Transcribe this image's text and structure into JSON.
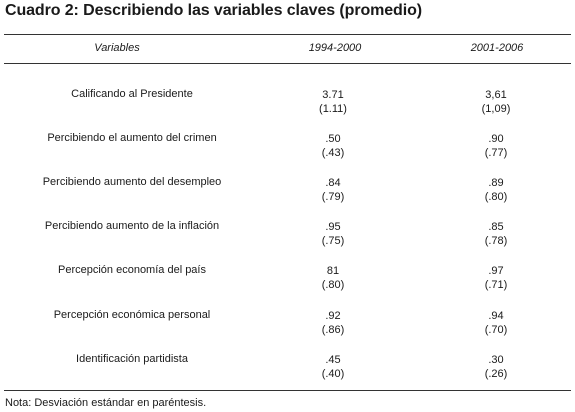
{
  "title": "Cuadro 2: Describiendo las variables claves (promedio)",
  "columns": [
    "Variables",
    "1994-2000",
    "2001-2006"
  ],
  "rows": [
    {
      "label": "Calificando al Presidente",
      "v1": "3.71",
      "sd1": "(1.11)",
      "v2": "3,61",
      "sd2": "(1,09)"
    },
    {
      "label": "Percibiendo el aumento del crimen",
      "v1": ".50",
      "sd1": "(.43)",
      "v2": ".90",
      "sd2": "(.77)"
    },
    {
      "label": "Percibiendo aumento  del desempleo",
      "v1": ".84",
      "sd1": "(.79)",
      "v2": ".89",
      "sd2": "(.80)"
    },
    {
      "label": "Percibiendo aumento de la inflación",
      "v1": ".95",
      "sd1": "(.75)",
      "v2": ".85",
      "sd2": "(.78)"
    },
    {
      "label": "Percepción economía del país",
      "v1": "81",
      "sd1": "(.80)",
      "v2": ".97",
      "sd2": "(.71)"
    },
    {
      "label": "Percepción económica personal",
      "v1": ".92",
      "sd1": "(.86)",
      "v2": ".94",
      "sd2": "(.70)"
    },
    {
      "label": "Identificación partidista",
      "v1": ".45",
      "sd1": "(.40)",
      "v2": ".30",
      "sd2": "(.26)"
    }
  ],
  "note": "Nota: Desviación estándar en paréntesis."
}
